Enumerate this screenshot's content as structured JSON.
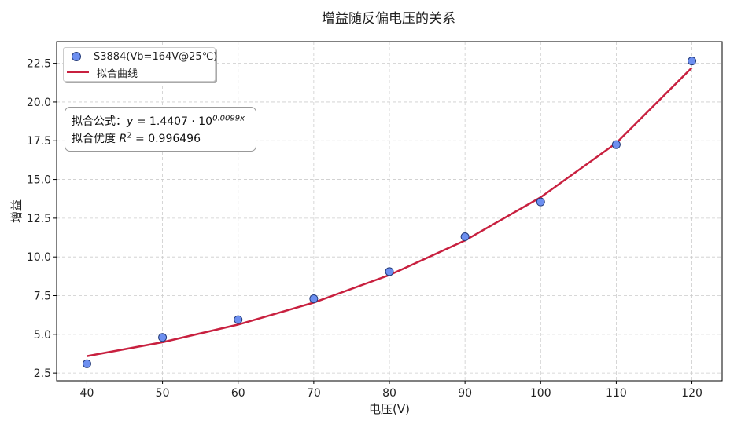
{
  "chart_data": {
    "type": "scatter",
    "title": "增益随反偏电压的关系",
    "xlabel": "电压(V)",
    "ylabel": "增益",
    "xlim": [
      36,
      124
    ],
    "ylim": [
      2.0,
      23.9
    ],
    "xticks": [
      40,
      50,
      60,
      70,
      80,
      90,
      100,
      110,
      120
    ],
    "yticks": [
      "2.5",
      "5.0",
      "7.5",
      "10.0",
      "12.5",
      "15.0",
      "17.5",
      "20.0",
      "22.5"
    ],
    "grid": true,
    "legend_position": "top-left",
    "series": [
      {
        "name": "S3884(Vb=164V@25℃)",
        "type": "scatter",
        "color": "#6d8ff0",
        "x": [
          40,
          50,
          60,
          70,
          80,
          90,
          100,
          110,
          120
        ],
        "y": [
          3.1,
          4.8,
          5.95,
          7.3,
          9.05,
          11.3,
          13.55,
          17.25,
          22.65
        ]
      },
      {
        "name": "拟合曲线",
        "type": "line",
        "color": "#c8203f",
        "x": [
          40,
          50,
          60,
          70,
          80,
          90,
          100,
          110,
          120
        ],
        "y": [
          3.59,
          4.49,
          5.63,
          7.05,
          8.83,
          11.06,
          13.85,
          17.35,
          22.22
        ]
      }
    ],
    "annotation": {
      "line1_label": "拟合公式：",
      "line1_expr": "y",
      "line1_rest": " = 1.4407 · 10",
      "line1_exp": "0.0099x",
      "line2_label": "拟合优度 ",
      "line2_var": "R",
      "line2_exp": "2",
      "line2_rest": " = 0.996496"
    }
  }
}
